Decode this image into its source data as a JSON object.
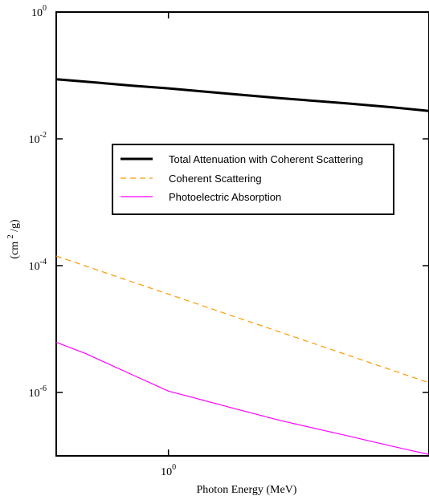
{
  "chart_data": {
    "type": "line",
    "x_scale": "log",
    "y_scale": "log",
    "xlim": [
      0.5,
      5.0
    ],
    "ylim": [
      1e-07,
      1.0
    ],
    "grid": false,
    "legend_position": "center-right",
    "title": "",
    "xlabel": "Photon Energy (MeV)",
    "ylabel": {
      "prefix": "(cm",
      "sup": "2",
      "suffix": "/g)"
    },
    "x_ticks": [
      {
        "value": 1.0,
        "base": "10",
        "exp": "0"
      }
    ],
    "y_ticks": [
      {
        "value": 1.0,
        "base": "10",
        "exp": "0"
      },
      {
        "value": 0.01,
        "base": "10",
        "exp": "-2"
      },
      {
        "value": 0.0001,
        "base": "10",
        "exp": "-4"
      },
      {
        "value": 1e-06,
        "base": "10",
        "exp": "-6"
      }
    ],
    "series": [
      {
        "name": "Total Attenuation with Coherent Scattering",
        "color": "#000000",
        "style": "solid",
        "width": 3,
        "x": [
          0.5,
          0.6,
          0.8,
          1.0,
          1.25,
          1.5,
          2.0,
          3.0,
          4.0,
          5.0
        ],
        "y": [
          0.087,
          0.08,
          0.069,
          0.0625,
          0.0557,
          0.0506,
          0.0437,
          0.0364,
          0.0314,
          0.0276
        ]
      },
      {
        "name": "Coherent Scattering",
        "color": "#ff9900",
        "style": "dashed",
        "width": 1.2,
        "x": [
          0.5,
          0.6,
          0.8,
          1.0,
          1.5,
          2.0,
          3.0,
          4.0,
          5.0
        ],
        "y": [
          0.000142,
          9.85e-05,
          5.54e-05,
          3.55e-05,
          1.58e-05,
          8.9e-06,
          3.95e-06,
          2.22e-06,
          1.42e-06
        ]
      },
      {
        "name": "Photoelectric Absorption",
        "color": "#ff00ff",
        "style": "solid",
        "width": 1.2,
        "x": [
          0.5,
          0.6,
          0.8,
          1.0,
          1.5,
          2.0,
          3.0,
          4.0,
          5.0
        ],
        "y": [
          6.2e-06,
          4.1e-06,
          1.9e-06,
          1.05e-06,
          5.6e-07,
          3.6e-07,
          2.09e-07,
          1.41e-07,
          1.05e-07
        ]
      }
    ]
  }
}
